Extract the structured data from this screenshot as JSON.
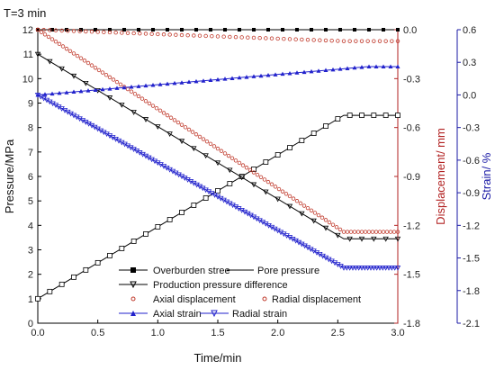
{
  "chart_data": {
    "type": "line",
    "title": "T=3 min",
    "xlabel": "Time/min",
    "ylabel_left": "Pressure/MPa",
    "ylabel_right1": "Displacement/ mm",
    "ylabel_right2": "Strain/ %",
    "xlim": [
      0,
      3
    ],
    "ylim_left": [
      0,
      12
    ],
    "ylim_right1": [
      -1.8,
      0
    ],
    "ylim_right2": [
      -2.1,
      0.6
    ],
    "x_ticks": [
      "0.0",
      "0.5",
      "1.0",
      "1.5",
      "2.0",
      "2.5",
      "3.0"
    ],
    "y_left_ticks": [
      "0",
      "1",
      "2",
      "3",
      "4",
      "5",
      "6",
      "7",
      "8",
      "9",
      "10",
      "11",
      "12"
    ],
    "y_right1_ticks": [
      "0.0",
      "-0.3",
      "-0.6",
      "-0.9",
      "-1.2",
      "-1.5",
      "-1.8"
    ],
    "y_right2_ticks": [
      "0.6",
      "0.3",
      "0.0",
      "-0.3",
      "-0.6",
      "-0.9",
      "-1.2",
      "-1.5",
      "-1.8",
      "-2.1"
    ],
    "colors": {
      "black": "#000000",
      "red": "#c0392b",
      "blue": "#2222cc",
      "axis_red": "#b22222",
      "axis_blue": "#1a1aa6"
    },
    "series": [
      {
        "name": "Overburden stree",
        "axis": "left",
        "x": [
          0,
          2.75,
          3.0
        ],
        "y": [
          12,
          12,
          12
        ]
      },
      {
        "name": "Pore pressure",
        "axis": "left",
        "x": [
          0,
          2.55,
          2.65,
          3.0
        ],
        "y": [
          1.0,
          8.5,
          8.5,
          8.5
        ]
      },
      {
        "name": "Production pressure difference",
        "axis": "left",
        "x": [
          0,
          2.55,
          3.0
        ],
        "y": [
          11.0,
          3.45,
          3.45
        ]
      },
      {
        "name": "Axial displacement",
        "axis": "right1",
        "x": [
          0,
          2.55,
          3.0
        ],
        "y": [
          0.0,
          -1.24,
          -1.24
        ]
      },
      {
        "name": "Radial displacement",
        "axis": "right1",
        "x": [
          0,
          2.55,
          3.0
        ],
        "y": [
          0.0,
          -0.07,
          -0.07
        ]
      },
      {
        "name": "Axial strain",
        "axis": "right2",
        "x": [
          0,
          2.75,
          3.0
        ],
        "y": [
          0.0,
          0.26,
          0.26
        ]
      },
      {
        "name": "Radial strain",
        "axis": "right2",
        "x": [
          0,
          2.55,
          3.0
        ],
        "y": [
          0.0,
          -1.59,
          -1.59
        ]
      }
    ],
    "legend": {
      "placement": "bottom-center",
      "entries": [
        "Overburden stree",
        "Pore pressure",
        "Production pressure difference",
        "Axial displacement",
        "Radial displacement",
        "Axial strain",
        "Radial strain"
      ]
    }
  }
}
